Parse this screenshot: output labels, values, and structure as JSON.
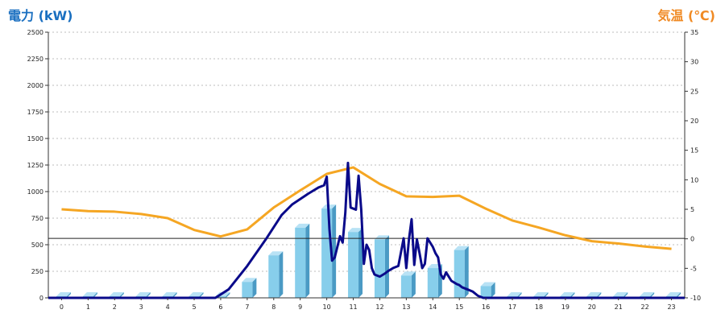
{
  "chart_data": {
    "type": "bar+line",
    "ylabel_left": "電力 (kW)",
    "ylabel_right": "気温 (℃)",
    "x_ticks": [
      "0",
      "1",
      "2",
      "3",
      "4",
      "5",
      "6",
      "7",
      "8",
      "9",
      "10",
      "11",
      "12",
      "13",
      "14",
      "15",
      "16",
      "17",
      "18",
      "19",
      "20",
      "21",
      "22",
      "23"
    ],
    "y_left_ticks": [
      "0",
      "250",
      "500",
      "750",
      "1000",
      "1250",
      "1500",
      "1750",
      "2000",
      "2250",
      "2500"
    ],
    "y_right_ticks": [
      "-10",
      "-5",
      "0",
      "5",
      "10",
      "15",
      "20",
      "25",
      "30",
      "35"
    ],
    "ylim_left": [
      0,
      2500
    ],
    "ylim_right": [
      -10,
      35
    ],
    "grid": "horizontal dashed",
    "bar_color": "#87ceeb",
    "power_line_color": "#0a0a8a",
    "temp_line_color": "#f5a623",
    "reference_line_value_left": 560,
    "hourly_power_kw": [
      15,
      15,
      15,
      15,
      15,
      15,
      15,
      150,
      400,
      660,
      840,
      620,
      550,
      210,
      280,
      450,
      110,
      15,
      15,
      15,
      15,
      15,
      15,
      15
    ],
    "power_line": {
      "x": [
        0,
        6.3,
        6.8,
        7.5,
        8.2,
        8.8,
        9.2,
        9.8,
        10.2,
        10.4,
        10.5,
        10.6,
        10.7,
        10.8,
        11.0,
        11.1,
        11.2,
        11.3,
        11.4,
        11.6,
        11.7,
        11.8,
        11.9,
        12.0,
        12.1,
        12.2,
        12.3,
        12.5,
        12.7,
        12.8,
        13.0,
        13.2,
        13.4,
        13.5,
        13.6,
        13.7,
        13.8,
        13.9,
        14.0,
        14.1,
        14.2,
        14.3,
        14.4,
        14.5,
        14.6,
        14.7,
        14.8,
        14.9,
        15.0,
        15.2,
        15.4,
        15.5,
        15.6,
        15.8,
        16.0,
        16.2,
        16.4,
        16.5,
        16.6,
        24
      ],
      "y": [
        0,
        0,
        80,
        300,
        550,
        780,
        880,
        980,
        1040,
        1060,
        1140,
        650,
        350,
        380,
        580,
        520,
        800,
        1270,
        850,
        830,
        1150,
        830,
        320,
        500,
        450,
        280,
        220,
        200,
        230,
        250,
        280,
        300,
        560,
        280,
        550,
        740,
        310,
        550,
        420,
        280,
        320,
        560,
        520,
        480,
        420,
        380,
        220,
        180,
        240,
        160,
        130,
        120,
        100,
        80,
        60,
        20,
        0,
        0,
        0,
        0
      ]
    },
    "temperature_c": [
      5,
      4.7,
      4.6,
      4.2,
      3.5,
      1.5,
      0.4,
      1.6,
      5.3,
      8.2,
      11,
      12.1,
      9.3,
      7.2,
      7.1,
      7.3,
      5.1,
      3.1,
      1.9,
      0.6,
      -0.4,
      -0.8,
      -1.3,
      -1.7
    ]
  }
}
